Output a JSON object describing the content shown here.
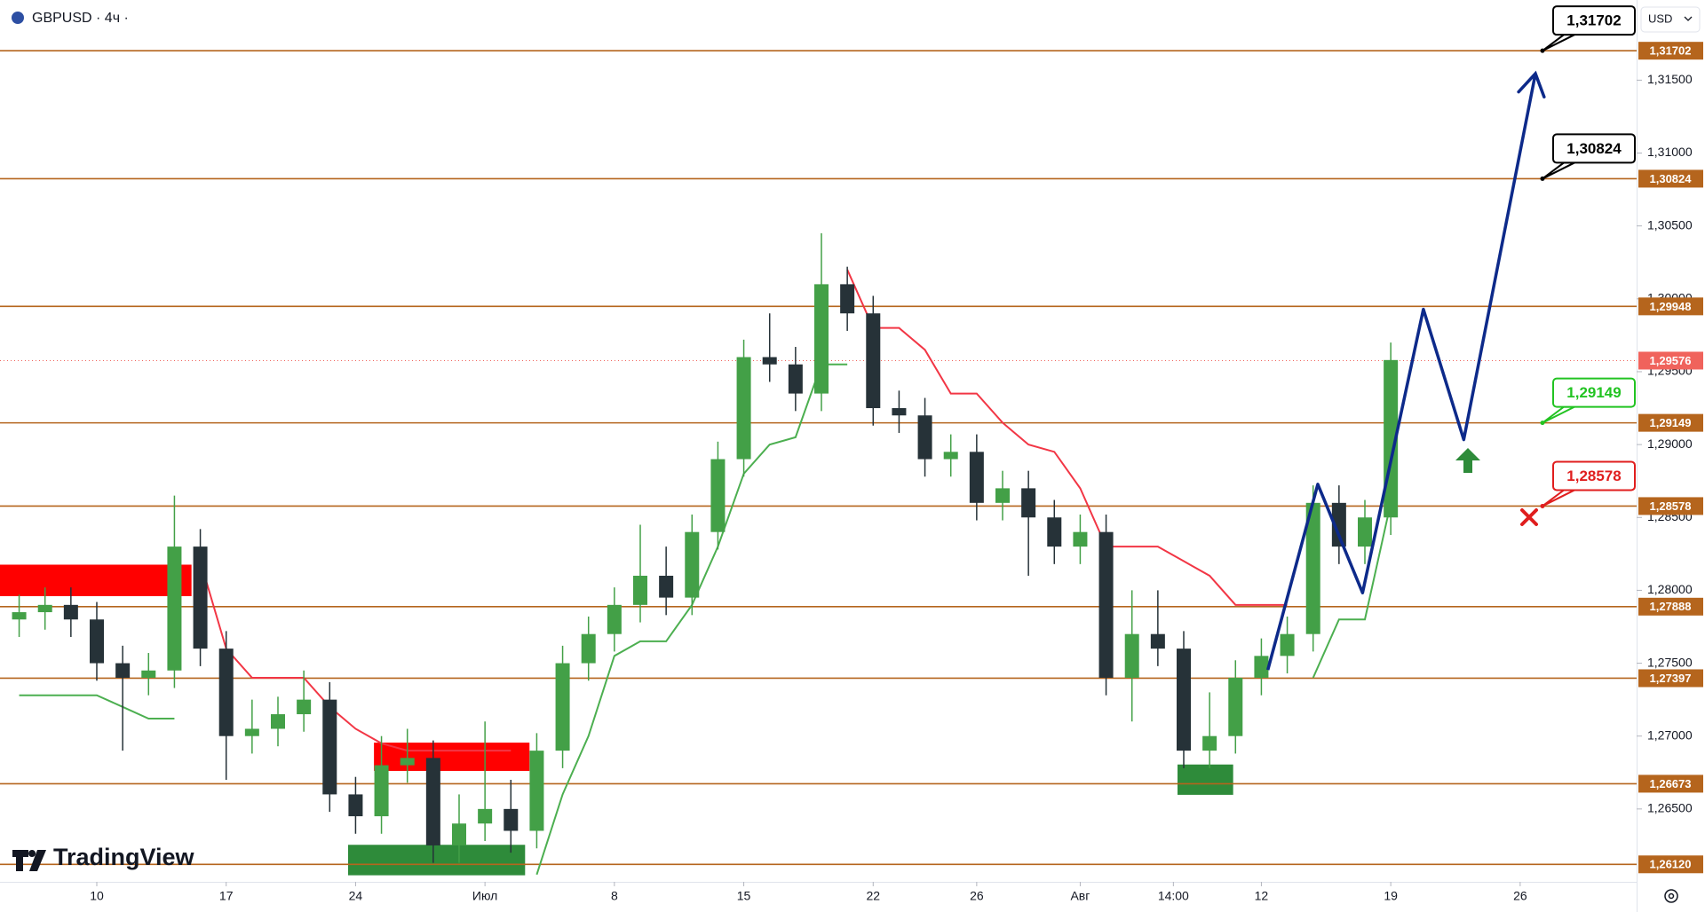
{
  "chart_data": {
    "type": "candlestick",
    "title": "GBPUSD · 4ч ·",
    "currency": "USD",
    "logo": "TradingView",
    "x": [
      -3,
      -2,
      -1,
      0,
      1,
      2,
      3,
      4,
      5,
      6,
      7,
      8,
      9,
      10,
      11,
      12,
      13,
      14,
      15,
      16,
      17,
      18,
      19,
      20,
      21,
      22,
      23,
      24,
      25,
      26,
      27,
      28,
      29,
      30,
      31,
      32,
      33,
      34,
      35,
      36,
      37,
      38,
      39,
      40,
      41,
      42,
      43,
      44,
      45,
      46,
      47,
      48,
      49,
      50
    ],
    "open": [
      1.278,
      1.2785,
      1.279,
      1.278,
      1.275,
      1.274,
      1.2745,
      1.283,
      1.276,
      1.27,
      1.2705,
      1.2715,
      1.2725,
      1.266,
      1.2645,
      1.268,
      1.2685,
      1.2625,
      1.264,
      1.265,
      1.2635,
      1.269,
      1.275,
      1.277,
      1.279,
      1.281,
      1.2795,
      1.284,
      1.289,
      1.296,
      1.2955,
      1.2935,
      1.301,
      1.299,
      1.2925,
      1.292,
      1.289,
      1.2895,
      1.286,
      1.287,
      1.285,
      1.283,
      1.284,
      1.274,
      1.277,
      1.276,
      1.269,
      1.27,
      1.274,
      1.2755,
      1.277,
      1.286,
      1.283,
      1.285
    ],
    "high": [
      1.2797,
      1.2802,
      1.2802,
      1.2792,
      1.2762,
      1.2757,
      1.2865,
      1.2842,
      1.2772,
      1.2725,
      1.2727,
      1.2745,
      1.2737,
      1.2672,
      1.27,
      1.2705,
      1.2697,
      1.266,
      1.271,
      1.267,
      1.2702,
      1.2762,
      1.2782,
      1.2802,
      1.2845,
      1.283,
      1.2852,
      1.2902,
      1.2972,
      1.299,
      1.2967,
      1.3045,
      1.3022,
      1.3002,
      1.2937,
      1.2932,
      1.2907,
      1.2907,
      1.2882,
      1.2882,
      1.2862,
      1.2852,
      1.2852,
      1.28,
      1.28,
      1.2772,
      1.273,
      1.2752,
      1.2767,
      1.2782,
      1.2872,
      1.2872,
      1.2862,
      1.297
    ],
    "low": [
      1.2768,
      1.2773,
      1.2768,
      1.2738,
      1.269,
      1.2728,
      1.2733,
      1.2748,
      1.267,
      1.2688,
      1.2693,
      1.2703,
      1.2648,
      1.2633,
      1.2633,
      1.2668,
      1.2613,
      1.2613,
      1.2628,
      1.262,
      1.2623,
      1.2678,
      1.2738,
      1.2758,
      1.2778,
      1.2783,
      1.2783,
      1.2828,
      1.2878,
      1.2943,
      1.2923,
      1.2923,
      1.2978,
      1.2913,
      1.2908,
      1.2878,
      1.2878,
      1.2848,
      1.2848,
      1.281,
      1.2818,
      1.2818,
      1.2728,
      1.271,
      1.2748,
      1.2678,
      1.2678,
      1.2688,
      1.2728,
      1.2743,
      1.2758,
      1.2818,
      1.2818,
      1.2838
    ],
    "close": [
      1.2785,
      1.279,
      1.278,
      1.275,
      1.274,
      1.2745,
      1.283,
      1.276,
      1.27,
      1.2705,
      1.2715,
      1.2725,
      1.266,
      1.2645,
      1.268,
      1.2685,
      1.2625,
      1.264,
      1.265,
      1.2635,
      1.269,
      1.275,
      1.277,
      1.279,
      1.281,
      1.2795,
      1.284,
      1.289,
      1.296,
      1.2955,
      1.2935,
      1.301,
      1.299,
      1.2925,
      1.292,
      1.289,
      1.2895,
      1.286,
      1.287,
      1.285,
      1.283,
      1.284,
      1.274,
      1.277,
      1.276,
      1.269,
      1.27,
      1.274,
      1.2755,
      1.277,
      1.286,
      1.283,
      1.285,
      1.2958
    ],
    "up_color": "#43a047",
    "down_color": "#263238",
    "trend_up": {
      "color": "#4caf50",
      "values": [
        1.2728,
        1.2728,
        1.2728,
        1.2728,
        1.272,
        1.2712,
        1.2712,
        null,
        null,
        null,
        null,
        null,
        null,
        null,
        null,
        null,
        null,
        null,
        null,
        null,
        1.2605,
        1.266,
        1.27,
        1.2755,
        1.2765,
        1.2765,
        1.279,
        1.283,
        1.288,
        1.29,
        1.2905,
        1.2955,
        1.2955,
        null,
        null,
        null,
        null,
        null,
        null,
        null,
        null,
        null,
        null,
        null,
        null,
        null,
        null,
        null,
        null,
        null,
        1.274,
        1.278,
        1.278,
        1.286
      ]
    },
    "trend_down": {
      "color": "#f23645",
      "values": [
        null,
        null,
        null,
        null,
        null,
        null,
        null,
        1.282,
        1.276,
        1.274,
        1.274,
        1.274,
        1.272,
        1.2705,
        1.2695,
        1.269,
        1.269,
        1.269,
        1.269,
        1.269,
        null,
        null,
        null,
        null,
        null,
        null,
        null,
        null,
        null,
        null,
        null,
        null,
        1.302,
        1.298,
        1.298,
        1.2965,
        1.2935,
        1.2935,
        1.2915,
        1.29,
        1.2895,
        1.287,
        1.283,
        1.283,
        1.283,
        1.282,
        1.281,
        1.279,
        1.279,
        1.279,
        null,
        null,
        null,
        null
      ]
    },
    "zones": [
      {
        "color": "#ff0000",
        "x": [
          -3.74,
          3.66
        ],
        "y": [
          1.2796,
          1.28176
        ]
      },
      {
        "color": "#ff0000",
        "x": [
          10.71,
          16.72
        ],
        "y": [
          1.26761,
          1.26955
        ]
      },
      {
        "color": "#2e8b3a",
        "x": [
          9.71,
          16.55
        ],
        "y": [
          1.26045,
          1.26254
        ]
      },
      {
        "color": "#2e8b3a",
        "x": [
          41.76,
          43.91
        ],
        "y": [
          1.26597,
          1.26805
        ]
      }
    ],
    "levels": [
      {
        "value": 1.31702,
        "label": "1,31702"
      },
      {
        "value": 1.30824,
        "label": "1,30824"
      },
      {
        "value": 1.29948,
        "label": "1,29948"
      },
      {
        "value": 1.29149,
        "label": "1,29149"
      },
      {
        "value": 1.28578,
        "label": "1,28578"
      },
      {
        "value": 1.27888,
        "label": "1,27888"
      },
      {
        "value": 1.27397,
        "label": "1,27397"
      },
      {
        "value": 1.26673,
        "label": "1,26673"
      },
      {
        "value": 1.2612,
        "label": "1,26120"
      }
    ],
    "level_color": "#b5651d",
    "last_price": {
      "value": 1.29576,
      "label": "1,29576",
      "color": "#f0635c"
    },
    "callouts": [
      {
        "value": 1.31702,
        "label": "1,31702",
        "color": "#000000"
      },
      {
        "value": 1.30824,
        "label": "1,30824",
        "color": "#000000"
      },
      {
        "value": 1.29149,
        "label": "1,29149",
        "color": "#22c322"
      },
      {
        "value": 1.28578,
        "label": "1,28578",
        "color": "#e01e1e"
      }
    ],
    "forecast": {
      "color": "#0d2a8a",
      "x": [
        45.25,
        47.18,
        48.91,
        51.26,
        52.82,
        55.59
      ],
      "y": [
        1.27454,
        1.28728,
        1.27983,
        1.29928,
        1.29034,
        1.31545
      ]
    },
    "xlim": [
      -3.74,
      59.5
    ],
    "ylim": [
      1.26,
      1.3205
    ],
    "xticks": [
      {
        "value": 0,
        "label": "10"
      },
      {
        "value": 5,
        "label": "17"
      },
      {
        "value": 10,
        "label": "24"
      },
      {
        "value": 15,
        "label": "Июл"
      },
      {
        "value": 20,
        "label": "8"
      },
      {
        "value": 25,
        "label": "15"
      },
      {
        "value": 30,
        "label": "22"
      },
      {
        "value": 34,
        "label": "26"
      },
      {
        "value": 38,
        "label": "Авг"
      },
      {
        "value": 41.6,
        "label": "14:00"
      },
      {
        "value": 45,
        "label": "12"
      },
      {
        "value": 50,
        "label": "19"
      },
      {
        "value": 55,
        "label": "26"
      }
    ],
    "yticks": [
      {
        "value": 1.315,
        "label": "1,31500"
      },
      {
        "value": 1.31,
        "label": "1,31000"
      },
      {
        "value": 1.305,
        "label": "1,30500"
      },
      {
        "value": 1.3,
        "label": "1,30000"
      },
      {
        "value": 1.295,
        "label": "1,29500"
      },
      {
        "value": 1.29,
        "label": "1,29000"
      },
      {
        "value": 1.285,
        "label": "1,28500"
      },
      {
        "value": 1.28,
        "label": "1,28000"
      },
      {
        "value": 1.275,
        "label": "1,27500"
      },
      {
        "value": 1.27,
        "label": "1,27000"
      },
      {
        "value": 1.265,
        "label": "1,26500"
      }
    ]
  }
}
